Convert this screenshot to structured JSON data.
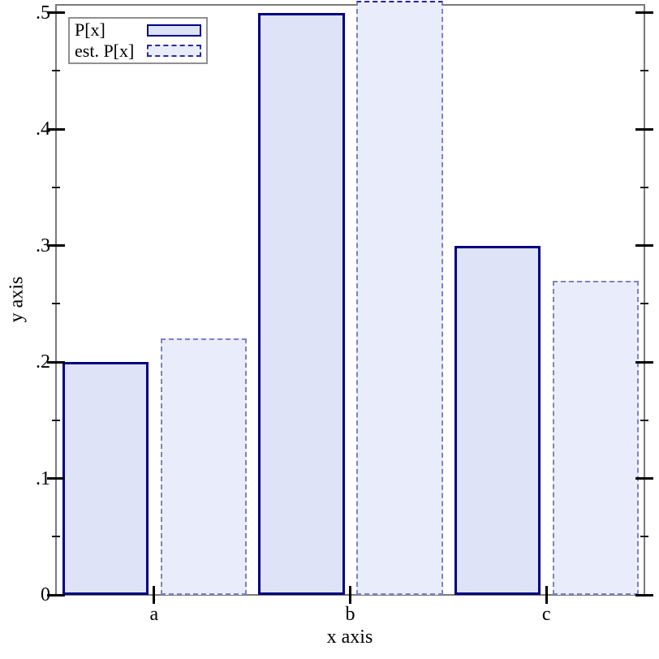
{
  "chart_data": {
    "type": "bar",
    "title": "",
    "xlabel": "x axis",
    "ylabel": "y axis",
    "categories": [
      "a",
      "b",
      "c"
    ],
    "series": [
      {
        "name": "P[x]",
        "values": [
          0.2,
          0.5,
          0.3
        ],
        "style": "solid",
        "fill": "#dee3f8",
        "border": "#000080"
      },
      {
        "name": "est. P[x]",
        "values": [
          0.22,
          0.51,
          0.27
        ],
        "style": "dashed",
        "fill": "#e9ecfb",
        "border": "#7b82c6",
        "border_top_colors": [
          "#7b82c6",
          "#23238f",
          "#7b82c6"
        ]
      }
    ],
    "ylim": [
      0,
      0.507
    ],
    "yticks": {
      "values": [
        0,
        0.1,
        0.2,
        0.3,
        0.4,
        0.5
      ],
      "labels": [
        "0",
        ".1",
        ".2",
        ".3",
        ".4",
        ".5"
      ],
      "minor": [
        0.05,
        0.15,
        0.25,
        0.35,
        0.45
      ]
    },
    "legend": {
      "position": "top-left",
      "entries": [
        "P[x]",
        "est. P[x]"
      ]
    },
    "grid": false,
    "frame_color": "#7a7a7a",
    "tick_color": "#000000"
  }
}
